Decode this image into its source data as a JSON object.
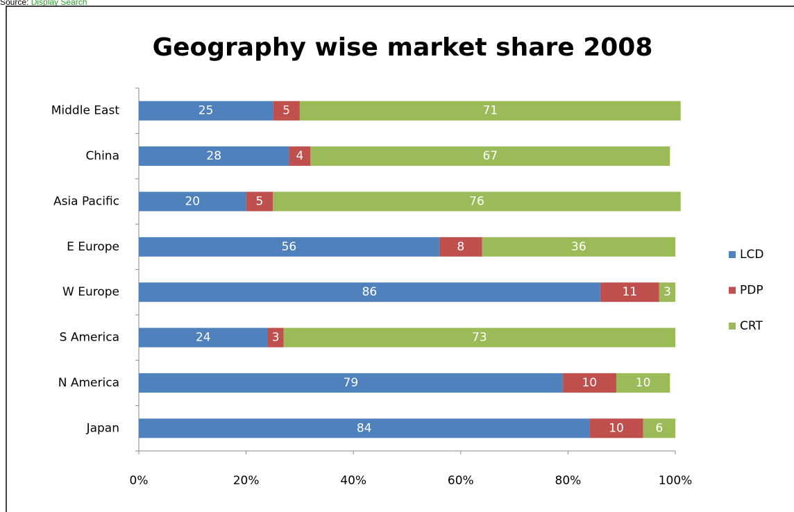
{
  "source": {
    "label": "Source:",
    "link": "Display Search"
  },
  "chart_data": {
    "type": "stacked_barh",
    "title": "Geography wise market share 2008",
    "categories": [
      "Middle East",
      "China",
      "Asia Pacific",
      "E Europe",
      "W Europe",
      "S America",
      "N America",
      "Japan"
    ],
    "series": [
      {
        "name": "LCD",
        "color": "#4f81bd",
        "values": [
          25,
          28,
          20,
          56,
          86,
          24,
          79,
          84
        ]
      },
      {
        "name": "PDP",
        "color": "#c0504d",
        "values": [
          5,
          4,
          5,
          8,
          11,
          3,
          10,
          10
        ]
      },
      {
        "name": "CRT",
        "color": "#9bbb59",
        "values": [
          71,
          67,
          76,
          36,
          3,
          73,
          10,
          6
        ]
      }
    ],
    "xlim": [
      0,
      100
    ],
    "xticks": [
      {
        "value": 0,
        "label": "0%"
      },
      {
        "value": 20,
        "label": "20%"
      },
      {
        "value": 40,
        "label": "40%"
      },
      {
        "value": 60,
        "label": "60%"
      },
      {
        "value": 80,
        "label": "80%"
      },
      {
        "value": 100,
        "label": "100%"
      }
    ],
    "legend": "right"
  }
}
